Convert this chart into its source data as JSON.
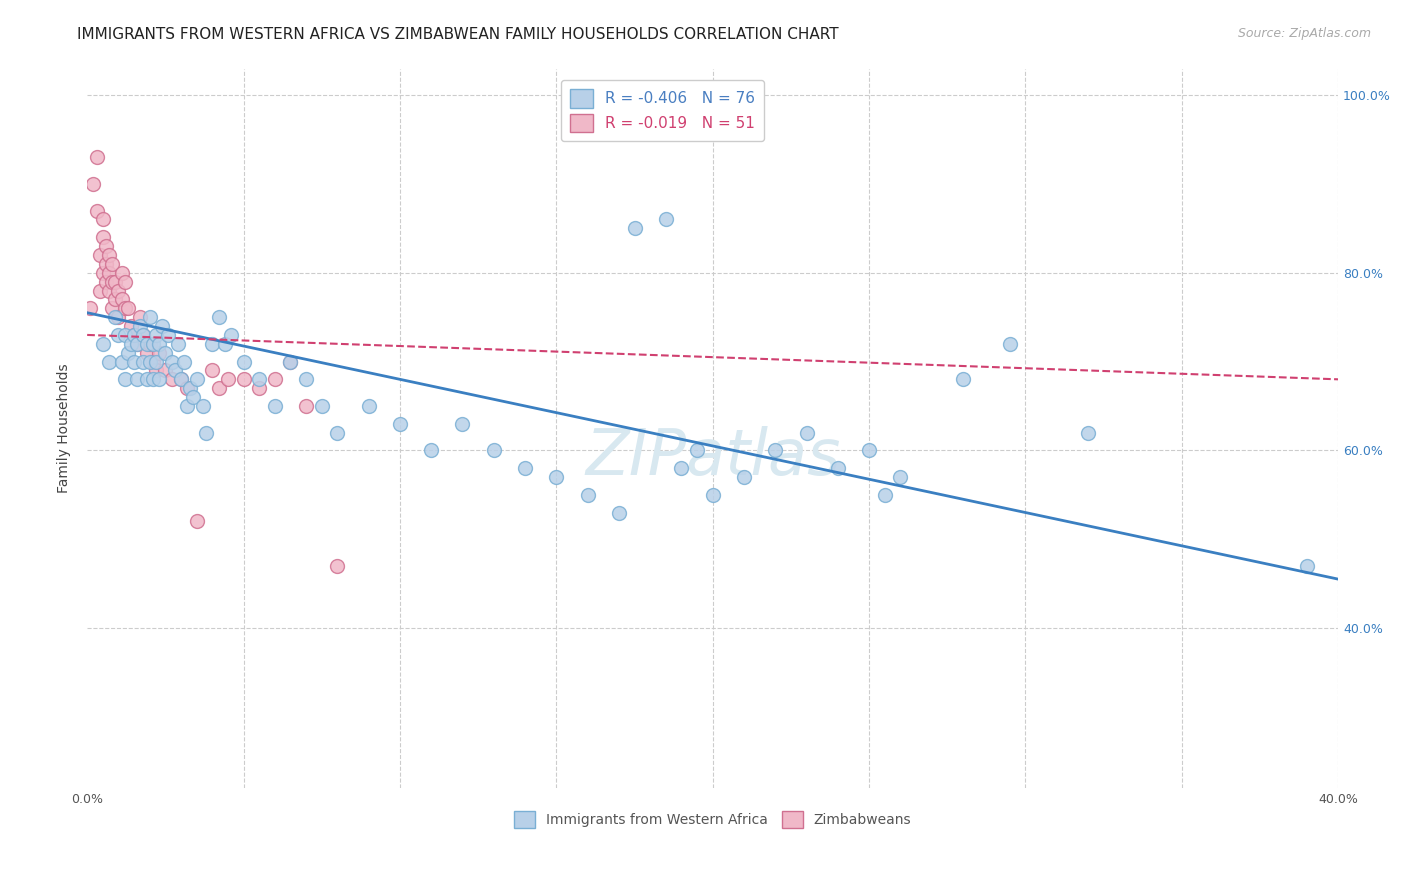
{
  "title": "IMMIGRANTS FROM WESTERN AFRICA VS ZIMBABWEAN FAMILY HOUSEHOLDS CORRELATION CHART",
  "source": "Source: ZipAtlas.com",
  "ylabel": "Family Households",
  "x_min": 0.0,
  "x_max": 0.4,
  "y_min": 0.22,
  "y_max": 1.03,
  "x_ticks": [
    0.0,
    0.05,
    0.1,
    0.15,
    0.2,
    0.25,
    0.3,
    0.35,
    0.4
  ],
  "x_tick_labels": [
    "0.0%",
    "",
    "",
    "",
    "",
    "",
    "",
    "",
    "40.0%"
  ],
  "y_ticks": [
    0.4,
    0.6,
    0.8,
    1.0
  ],
  "y_tick_labels": [
    "40.0%",
    "60.0%",
    "80.0%",
    "100.0%"
  ],
  "legend_entries": [
    {
      "label": "R = -0.406   N = 76",
      "color": "#b8d0e8",
      "text_color": "#4a7fc1"
    },
    {
      "label": "R = -0.019   N = 51",
      "color": "#f0b8c8",
      "text_color": "#d04070"
    }
  ],
  "legend_labels_bottom": [
    "Immigrants from Western Africa",
    "Zimbabweans"
  ],
  "blue_scatter_x": [
    0.005,
    0.007,
    0.009,
    0.01,
    0.011,
    0.012,
    0.012,
    0.013,
    0.014,
    0.015,
    0.015,
    0.016,
    0.016,
    0.017,
    0.018,
    0.018,
    0.019,
    0.019,
    0.02,
    0.02,
    0.021,
    0.021,
    0.022,
    0.022,
    0.023,
    0.023,
    0.024,
    0.025,
    0.026,
    0.027,
    0.028,
    0.029,
    0.03,
    0.031,
    0.032,
    0.033,
    0.034,
    0.035,
    0.037,
    0.038,
    0.04,
    0.042,
    0.044,
    0.046,
    0.05,
    0.055,
    0.06,
    0.065,
    0.07,
    0.075,
    0.08,
    0.09,
    0.1,
    0.11,
    0.12,
    0.13,
    0.14,
    0.15,
    0.16,
    0.17,
    0.175,
    0.185,
    0.19,
    0.195,
    0.2,
    0.21,
    0.22,
    0.23,
    0.24,
    0.25,
    0.255,
    0.26,
    0.28,
    0.295,
    0.32,
    0.39
  ],
  "blue_scatter_y": [
    0.72,
    0.7,
    0.75,
    0.73,
    0.7,
    0.68,
    0.73,
    0.71,
    0.72,
    0.7,
    0.73,
    0.68,
    0.72,
    0.74,
    0.7,
    0.73,
    0.68,
    0.72,
    0.7,
    0.75,
    0.72,
    0.68,
    0.73,
    0.7,
    0.72,
    0.68,
    0.74,
    0.71,
    0.73,
    0.7,
    0.69,
    0.72,
    0.68,
    0.7,
    0.65,
    0.67,
    0.66,
    0.68,
    0.65,
    0.62,
    0.72,
    0.75,
    0.72,
    0.73,
    0.7,
    0.68,
    0.65,
    0.7,
    0.68,
    0.65,
    0.62,
    0.65,
    0.63,
    0.6,
    0.63,
    0.6,
    0.58,
    0.57,
    0.55,
    0.53,
    0.85,
    0.86,
    0.58,
    0.6,
    0.55,
    0.57,
    0.6,
    0.62,
    0.58,
    0.6,
    0.55,
    0.57,
    0.68,
    0.72,
    0.62,
    0.47
  ],
  "pink_scatter_x": [
    0.001,
    0.002,
    0.003,
    0.003,
    0.004,
    0.004,
    0.005,
    0.005,
    0.005,
    0.006,
    0.006,
    0.006,
    0.007,
    0.007,
    0.007,
    0.008,
    0.008,
    0.008,
    0.009,
    0.009,
    0.01,
    0.01,
    0.011,
    0.011,
    0.012,
    0.012,
    0.013,
    0.014,
    0.015,
    0.016,
    0.017,
    0.018,
    0.019,
    0.02,
    0.021,
    0.022,
    0.023,
    0.025,
    0.027,
    0.03,
    0.032,
    0.035,
    0.04,
    0.042,
    0.045,
    0.05,
    0.055,
    0.06,
    0.065,
    0.07,
    0.08
  ],
  "pink_scatter_y": [
    0.76,
    0.9,
    0.93,
    0.87,
    0.78,
    0.82,
    0.8,
    0.84,
    0.86,
    0.79,
    0.81,
    0.83,
    0.78,
    0.8,
    0.82,
    0.76,
    0.79,
    0.81,
    0.77,
    0.79,
    0.75,
    0.78,
    0.77,
    0.8,
    0.76,
    0.79,
    0.76,
    0.74,
    0.73,
    0.72,
    0.75,
    0.73,
    0.71,
    0.72,
    0.7,
    0.69,
    0.71,
    0.69,
    0.68,
    0.68,
    0.67,
    0.52,
    0.69,
    0.67,
    0.68,
    0.68,
    0.67,
    0.68,
    0.7,
    0.65,
    0.47
  ],
  "blue_line_x": [
    0.0,
    0.4
  ],
  "blue_line_y": [
    0.755,
    0.455
  ],
  "pink_line_x": [
    0.0,
    0.4
  ],
  "pink_line_y": [
    0.73,
    0.68
  ],
  "blue_scatter_color": "#b8d0e8",
  "blue_scatter_edge": "#7aafd4",
  "pink_scatter_color": "#f0b8c8",
  "pink_scatter_edge": "#d07090",
  "blue_line_color": "#3a7fc1",
  "pink_line_color": "#d04070",
  "grid_color": "#cccccc",
  "background_color": "#ffffff",
  "title_fontsize": 11,
  "axis_label_fontsize": 10,
  "tick_fontsize": 9,
  "source_fontsize": 9,
  "watermark_text": "ZIPatlas",
  "watermark_color": "#d8e8f0"
}
